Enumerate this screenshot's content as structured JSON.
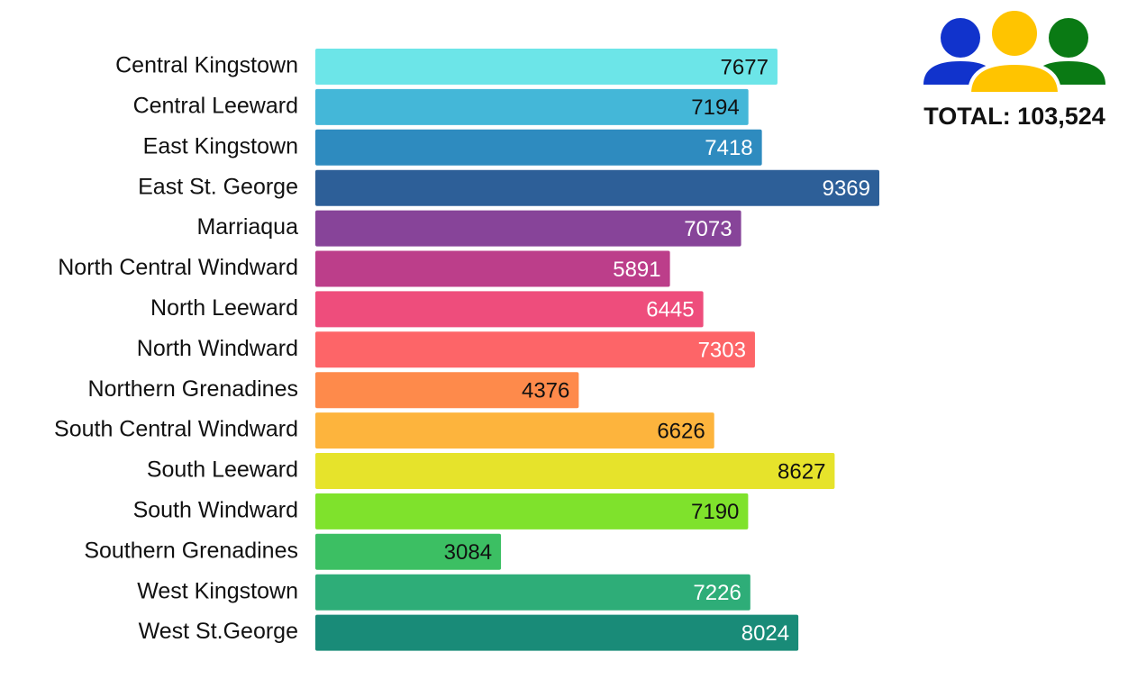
{
  "chart_data": {
    "type": "bar",
    "orientation": "horizontal",
    "categories": [
      "Central Kingstown",
      "Central Leeward",
      "East Kingstown",
      "East St. George",
      "Marriaqua",
      "North Central Windward",
      "North Leeward",
      "North Windward",
      "Northern Grenadines",
      "South Central Windward",
      "South Leeward",
      "South Windward",
      "Southern Grenadines",
      "West Kingstown",
      "West St.George"
    ],
    "values": [
      7677,
      7194,
      7418,
      9369,
      7073,
      5891,
      6445,
      7303,
      4376,
      6626,
      8627,
      7190,
      3084,
      7226,
      8024
    ],
    "colors": [
      "#6ce5e8",
      "#44b7d8",
      "#2e8bbf",
      "#2d5f98",
      "#874499",
      "#bc3e8a",
      "#ee4d7c",
      "#fd6568",
      "#fe8a4b",
      "#fdb43d",
      "#e6e32b",
      "#7fe22c",
      "#3cbf63",
      "#2ead78",
      "#198b78"
    ],
    "value_label_colors": [
      "#111111",
      "#111111",
      "#ffffff",
      "#ffffff",
      "#ffffff",
      "#ffffff",
      "#ffffff",
      "#ffffff",
      "#111111",
      "#111111",
      "#111111",
      "#111111",
      "#111111",
      "#ffffff",
      "#ffffff"
    ],
    "annotation": "TOTAL: 103,524"
  }
}
